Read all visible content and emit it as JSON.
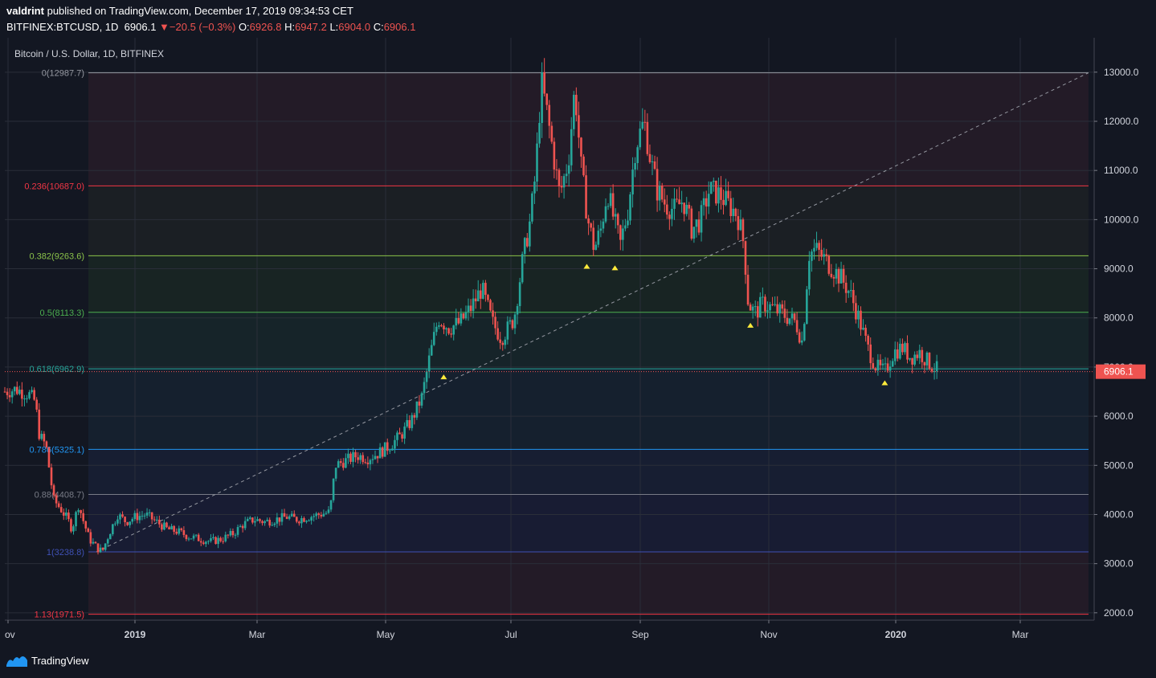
{
  "header": {
    "author": "valdrint",
    "published_text": "published on TradingView.com, December 17, 2019 09:34:53 CET"
  },
  "quote": {
    "symbol": "BITFINEX:BTCUSD, 1D",
    "last": "6906.1",
    "change": "−20.5 (−0.3%)",
    "o_label": "O:",
    "o_value": "6926.8",
    "h_label": "H:",
    "h_value": "6947.2",
    "l_label": "L:",
    "l_value": "6904.0",
    "c_label": "C:",
    "c_value": "6906.1"
  },
  "chart_title": "Bitcoin / U.S. Dollar, 1D, BITFINEX",
  "brand": {
    "name": "TradingView"
  },
  "colors": {
    "up": "#26a69a",
    "down": "#ef5350",
    "background": "#131722",
    "grid": "#2a2e39",
    "price_tag": "#ef5350"
  },
  "chart_data": {
    "type": "candlestick",
    "title": "Bitcoin / U.S. Dollar, 1D, BITFINEX",
    "x_ticks": [
      "ov",
      "2019",
      "Mar",
      "May",
      "Jul",
      "Sep",
      "Nov",
      "2020",
      "Mar"
    ],
    "y_ticks": [
      "13000.0",
      "12000.0",
      "11000.0",
      "10000.0",
      "9000.0",
      "8000.0",
      "7000.0",
      "6000.0",
      "5000.0",
      "4000.0",
      "3000.0",
      "2000.0"
    ],
    "y_tick_values": [
      13000,
      12000,
      11000,
      10000,
      9000,
      8000,
      7000,
      6000,
      5000,
      4000,
      3000,
      2000
    ],
    "ylim": [
      1850,
      13700
    ],
    "last_price": {
      "label": "6906.1",
      "value": 6906.1
    },
    "fib_levels": [
      {
        "label": "0(12987.7)",
        "value": 12987.7,
        "color": "#9598a1"
      },
      {
        "label": "0.236(10687.0)",
        "value": 10687.0,
        "color": "#f23645"
      },
      {
        "label": "0.382(9263.6)",
        "value": 9263.6,
        "color": "#8bc34a"
      },
      {
        "label": "0.5(8113.3)",
        "value": 8113.3,
        "color": "#4caf50"
      },
      {
        "label": "0.618(6962.9)",
        "value": 6962.9,
        "color": "#26a69a"
      },
      {
        "label": "0.786(5325.1)",
        "value": 5325.1,
        "color": "#2196f3"
      },
      {
        "label": "0.88(4408.7)",
        "value": 4408.7,
        "color": "#787b86"
      },
      {
        "label": "1(3238.8)",
        "value": 3238.8,
        "color": "#3f51b5"
      },
      {
        "label": "1.13(1971.5)",
        "value": 1971.5,
        "color": "#f23645"
      }
    ],
    "trendline": {
      "from": [
        0,
        3238.8
      ],
      "to": [
        1,
        12987.7
      ]
    },
    "markers": [
      {
        "date_index": 0.405,
        "value": 6800
      },
      {
        "date_index": 0.537,
        "value": 9050
      },
      {
        "date_index": 0.563,
        "value": 9020
      },
      {
        "date_index": 0.688,
        "value": 7850
      },
      {
        "date_index": 0.812,
        "value": 6680
      }
    ],
    "price_path": [
      [
        0.0,
        6500
      ],
      [
        0.01,
        6550
      ],
      [
        0.022,
        6450
      ],
      [
        0.028,
        6300
      ],
      [
        0.032,
        5600
      ],
      [
        0.038,
        5400
      ],
      [
        0.045,
        4300
      ],
      [
        0.052,
        4100
      ],
      [
        0.058,
        3900
      ],
      [
        0.062,
        3700
      ],
      [
        0.068,
        4200
      ],
      [
        0.072,
        3900
      ],
      [
        0.078,
        3500
      ],
      [
        0.086,
        3300
      ],
      [
        0.09,
        3250
      ],
      [
        0.096,
        3600
      ],
      [
        0.104,
        4000
      ],
      [
        0.112,
        3850
      ],
      [
        0.12,
        3950
      ],
      [
        0.13,
        4000
      ],
      [
        0.14,
        3850
      ],
      [
        0.15,
        3700
      ],
      [
        0.16,
        3650
      ],
      [
        0.17,
        3550
      ],
      [
        0.18,
        3500
      ],
      [
        0.19,
        3450
      ],
      [
        0.2,
        3500
      ],
      [
        0.21,
        3600
      ],
      [
        0.22,
        3800
      ],
      [
        0.23,
        3900
      ],
      [
        0.24,
        3850
      ],
      [
        0.25,
        3900
      ],
      [
        0.26,
        3950
      ],
      [
        0.27,
        3900
      ],
      [
        0.28,
        3950
      ],
      [
        0.29,
        4000
      ],
      [
        0.3,
        4050
      ],
      [
        0.305,
        5000
      ],
      [
        0.315,
        5100
      ],
      [
        0.325,
        5200
      ],
      [
        0.335,
        5150
      ],
      [
        0.345,
        5250
      ],
      [
        0.355,
        5400
      ],
      [
        0.365,
        5600
      ],
      [
        0.375,
        5900
      ],
      [
        0.385,
        6400
      ],
      [
        0.392,
        7200
      ],
      [
        0.4,
        8000
      ],
      [
        0.41,
        7800
      ],
      [
        0.42,
        7900
      ],
      [
        0.43,
        8200
      ],
      [
        0.44,
        8600
      ],
      [
        0.45,
        7900
      ],
      [
        0.458,
        7600
      ],
      [
        0.465,
        7800
      ],
      [
        0.47,
        8000
      ],
      [
        0.478,
        9200
      ],
      [
        0.485,
        10000
      ],
      [
        0.49,
        11000
      ],
      [
        0.495,
        12800
      ],
      [
        0.5,
        12200
      ],
      [
        0.505,
        11500
      ],
      [
        0.512,
        10500
      ],
      [
        0.52,
        11200
      ],
      [
        0.526,
        12700
      ],
      [
        0.532,
        11000
      ],
      [
        0.538,
        10000
      ],
      [
        0.544,
        9400
      ],
      [
        0.55,
        9800
      ],
      [
        0.556,
        10600
      ],
      [
        0.562,
        10000
      ],
      [
        0.568,
        9500
      ],
      [
        0.575,
        10200
      ],
      [
        0.582,
        11500
      ],
      [
        0.59,
        12000
      ],
      [
        0.596,
        11200
      ],
      [
        0.602,
        10600
      ],
      [
        0.61,
        10300
      ],
      [
        0.618,
        10200
      ],
      [
        0.626,
        10400
      ],
      [
        0.634,
        9800
      ],
      [
        0.642,
        10000
      ],
      [
        0.65,
        10600
      ],
      [
        0.66,
        10500
      ],
      [
        0.668,
        10300
      ],
      [
        0.676,
        10100
      ],
      [
        0.682,
        9500
      ],
      [
        0.686,
        8300
      ],
      [
        0.692,
        8100
      ],
      [
        0.7,
        8300
      ],
      [
        0.708,
        8200
      ],
      [
        0.716,
        8100
      ],
      [
        0.724,
        8000
      ],
      [
        0.73,
        7900
      ],
      [
        0.736,
        7500
      ],
      [
        0.742,
        9300
      ],
      [
        0.748,
        9400
      ],
      [
        0.756,
        9200
      ],
      [
        0.764,
        9000
      ],
      [
        0.772,
        8800
      ],
      [
        0.78,
        8500
      ],
      [
        0.788,
        8000
      ],
      [
        0.796,
        7400
      ],
      [
        0.804,
        7000
      ],
      [
        0.812,
        6900
      ],
      [
        0.82,
        7300
      ],
      [
        0.828,
        7400
      ],
      [
        0.836,
        7200
      ],
      [
        0.844,
        7300
      ],
      [
        0.852,
        7100
      ],
      [
        0.86,
        6950
      ]
    ]
  }
}
